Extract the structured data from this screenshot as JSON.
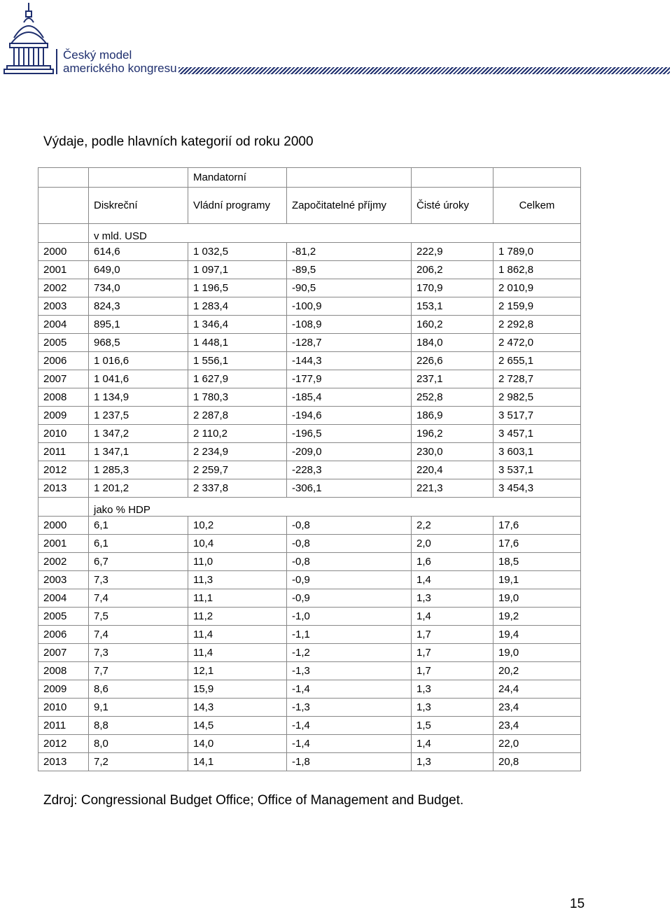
{
  "header": {
    "logo_line1": "Český model",
    "logo_line2": "amerického kongresu"
  },
  "title": "Výdaje, podle hlavních kategorií od roku 2000",
  "table": {
    "group_header": "Mandatorní",
    "columns": [
      "Diskreční",
      "Vládní programy",
      "Započitatelné příjmy",
      "Čisté úroky",
      "Celkem"
    ],
    "sections": [
      {
        "label": "v mld. USD",
        "rows": [
          [
            "2000",
            "614,6",
            "1 032,5",
            "-81,2",
            "222,9",
            "1 789,0"
          ],
          [
            "2001",
            "649,0",
            "1 097,1",
            "-89,5",
            "206,2",
            "1 862,8"
          ],
          [
            "2002",
            "734,0",
            "1 196,5",
            "-90,5",
            "170,9",
            "2 010,9"
          ],
          [
            "2003",
            "824,3",
            "1 283,4",
            "-100,9",
            "153,1",
            "2 159,9"
          ],
          [
            "2004",
            "895,1",
            "1 346,4",
            "-108,9",
            "160,2",
            "2 292,8"
          ],
          [
            "2005",
            "968,5",
            "1 448,1",
            "-128,7",
            "184,0",
            "2 472,0"
          ],
          [
            "2006",
            "1 016,6",
            "1 556,1",
            "-144,3",
            "226,6",
            "2 655,1"
          ],
          [
            "2007",
            "1 041,6",
            "1 627,9",
            "-177,9",
            "237,1",
            "2 728,7"
          ],
          [
            "2008",
            "1 134,9",
            "1 780,3",
            "-185,4",
            "252,8",
            "2 982,5"
          ],
          [
            "2009",
            "1 237,5",
            "2 287,8",
            "-194,6",
            "186,9",
            "3 517,7"
          ],
          [
            "2010",
            "1 347,2",
            "2 110,2",
            "-196,5",
            "196,2",
            "3 457,1"
          ],
          [
            "2011",
            "1 347,1",
            "2 234,9",
            "-209,0",
            "230,0",
            "3 603,1"
          ],
          [
            "2012",
            "1 285,3",
            "2 259,7",
            "-228,3",
            "220,4",
            "3 537,1"
          ],
          [
            "2013",
            "1 201,2",
            "2 337,8",
            "-306,1",
            "221,3",
            "3 454,3"
          ]
        ]
      },
      {
        "label": "jako % HDP",
        "rows": [
          [
            "2000",
            "6,1",
            "10,2",
            "-0,8",
            "2,2",
            "17,6"
          ],
          [
            "2001",
            "6,1",
            "10,4",
            "-0,8",
            "2,0",
            "17,6"
          ],
          [
            "2002",
            "6,7",
            "11,0",
            "-0,8",
            "1,6",
            "18,5"
          ],
          [
            "2003",
            "7,3",
            "11,3",
            "-0,9",
            "1,4",
            "19,1"
          ],
          [
            "2004",
            "7,4",
            "11,1",
            "-0,9",
            "1,3",
            "19,0"
          ],
          [
            "2005",
            "7,5",
            "11,2",
            "-1,0",
            "1,4",
            "19,2"
          ],
          [
            "2006",
            "7,4",
            "11,4",
            "-1,1",
            "1,7",
            "19,4"
          ],
          [
            "2007",
            "7,3",
            "11,4",
            "-1,2",
            "1,7",
            "19,0"
          ],
          [
            "2008",
            "7,7",
            "12,1",
            "-1,3",
            "1,7",
            "20,2"
          ],
          [
            "2009",
            "8,6",
            "15,9",
            "-1,4",
            "1,3",
            "24,4"
          ],
          [
            "2010",
            "9,1",
            "14,3",
            "-1,3",
            "1,3",
            "23,4"
          ],
          [
            "2011",
            "8,8",
            "14,5",
            "-1,4",
            "1,5",
            "23,4"
          ],
          [
            "2012",
            "8,0",
            "14,0",
            "-1,4",
            "1,4",
            "22,0"
          ],
          [
            "2013",
            "7,2",
            "14,1",
            "-1,8",
            "1,3",
            "20,8"
          ]
        ]
      }
    ]
  },
  "source": "Zdroj: Congressional Budget Office; Office of Management and Budget.",
  "page_number": "15",
  "colors": {
    "brand": "#1f2f6e",
    "border": "#888888"
  },
  "icons": [
    "capitol-dome-icon"
  ]
}
